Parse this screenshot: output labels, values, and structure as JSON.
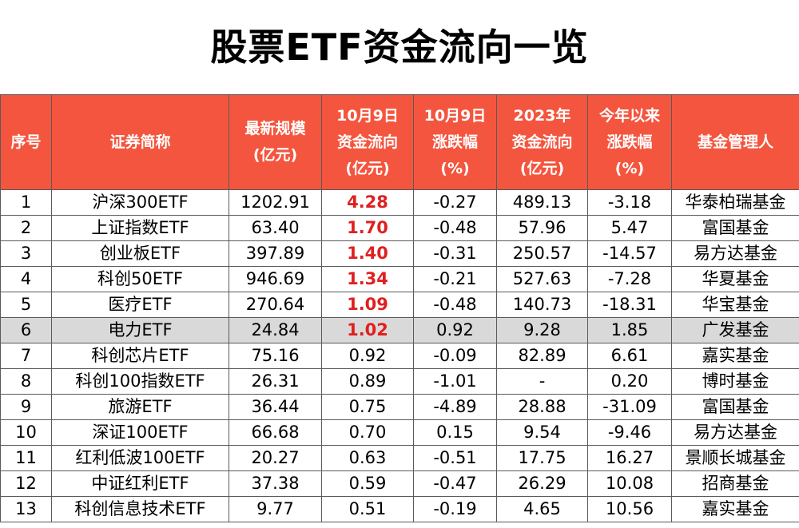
{
  "title": "股票ETF资金流向一览",
  "colors": {
    "header_bg": "#f4553e",
    "header_text": "#ffffff",
    "inflow_highlight": "#e02020",
    "row_highlight": "#d9d9d9"
  },
  "columns": [
    {
      "lines": [
        "序号"
      ]
    },
    {
      "lines": [
        "证券简称"
      ]
    },
    {
      "lines": [
        "最新规模",
        "(亿元)"
      ]
    },
    {
      "lines": [
        "10月9日",
        "资金流向",
        "(亿元)"
      ]
    },
    {
      "lines": [
        "10月9日",
        "涨跌幅",
        "(%)"
      ]
    },
    {
      "lines": [
        "2023年",
        "资金流向",
        "(亿元)"
      ]
    },
    {
      "lines": [
        "今年以来",
        "涨跌幅",
        "(%)"
      ]
    },
    {
      "lines": [
        "基金管理人"
      ]
    }
  ],
  "rows": [
    {
      "no": "1",
      "name": "沪深300ETF",
      "scale": "1202.91",
      "flow": "4.28",
      "chg": "-0.27",
      "flow2023": "489.13",
      "ytd": "-3.18",
      "manager": "华泰柏瑞基金",
      "flow_highlight": true,
      "row_highlight": false
    },
    {
      "no": "2",
      "name": "上证指数ETF",
      "scale": "63.40",
      "flow": "1.70",
      "chg": "-0.48",
      "flow2023": "57.96",
      "ytd": "5.47",
      "manager": "富国基金",
      "flow_highlight": true,
      "row_highlight": false
    },
    {
      "no": "3",
      "name": "创业板ETF",
      "scale": "397.89",
      "flow": "1.40",
      "chg": "-0.31",
      "flow2023": "250.57",
      "ytd": "-14.57",
      "manager": "易方达基金",
      "flow_highlight": true,
      "row_highlight": false
    },
    {
      "no": "4",
      "name": "科创50ETF",
      "scale": "946.69",
      "flow": "1.34",
      "chg": "-0.21",
      "flow2023": "527.63",
      "ytd": "-7.28",
      "manager": "华夏基金",
      "flow_highlight": true,
      "row_highlight": false
    },
    {
      "no": "5",
      "name": "医疗ETF",
      "scale": "270.64",
      "flow": "1.09",
      "chg": "-0.48",
      "flow2023": "140.73",
      "ytd": "-18.31",
      "manager": "华宝基金",
      "flow_highlight": true,
      "row_highlight": false
    },
    {
      "no": "6",
      "name": "电力ETF",
      "scale": "24.84",
      "flow": "1.02",
      "chg": "0.92",
      "flow2023": "9.28",
      "ytd": "1.85",
      "manager": "广发基金",
      "flow_highlight": true,
      "row_highlight": true
    },
    {
      "no": "7",
      "name": "科创芯片ETF",
      "scale": "75.16",
      "flow": "0.92",
      "chg": "-0.09",
      "flow2023": "82.89",
      "ytd": "6.61",
      "manager": "嘉实基金",
      "flow_highlight": false,
      "row_highlight": false
    },
    {
      "no": "8",
      "name": "科创100指数ETF",
      "scale": "26.31",
      "flow": "0.89",
      "chg": "-1.01",
      "flow2023": "-",
      "ytd": "0.20",
      "manager": "博时基金",
      "flow_highlight": false,
      "row_highlight": false
    },
    {
      "no": "9",
      "name": "旅游ETF",
      "scale": "36.44",
      "flow": "0.75",
      "chg": "-4.89",
      "flow2023": "28.88",
      "ytd": "-31.09",
      "manager": "富国基金",
      "flow_highlight": false,
      "row_highlight": false
    },
    {
      "no": "10",
      "name": "深证100ETF",
      "scale": "66.68",
      "flow": "0.70",
      "chg": "0.15",
      "flow2023": "9.54",
      "ytd": "-9.46",
      "manager": "易方达基金",
      "flow_highlight": false,
      "row_highlight": false
    },
    {
      "no": "11",
      "name": "红利低波100ETF",
      "scale": "20.27",
      "flow": "0.63",
      "chg": "-0.51",
      "flow2023": "17.75",
      "ytd": "16.27",
      "manager": "景顺长城基金",
      "flow_highlight": false,
      "row_highlight": false
    },
    {
      "no": "12",
      "name": "中证红利ETF",
      "scale": "37.38",
      "flow": "0.59",
      "chg": "-0.47",
      "flow2023": "26.29",
      "ytd": "10.08",
      "manager": "招商基金",
      "flow_highlight": false,
      "row_highlight": false
    },
    {
      "no": "13",
      "name": "科创信息技术ETF",
      "scale": "9.77",
      "flow": "0.51",
      "chg": "-0.19",
      "flow2023": "4.65",
      "ytd": "10.56",
      "manager": "嘉实基金",
      "flow_highlight": false,
      "row_highlight": false
    }
  ]
}
